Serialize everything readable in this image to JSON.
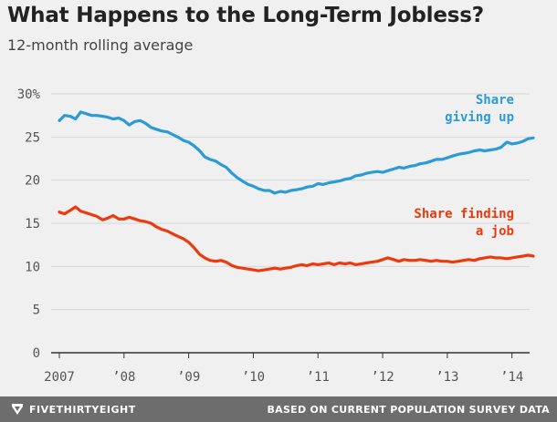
{
  "chart_data": {
    "type": "line",
    "title": "What Happens to the Long-Term Jobless?",
    "subtitle": "12-month rolling average",
    "xlabel": "",
    "ylabel": "",
    "xlim": [
      2007.0,
      2014.4
    ],
    "ylim": [
      0,
      30
    ],
    "y_ticks": [
      {
        "value": 0,
        "label": "0"
      },
      {
        "value": 5,
        "label": "5"
      },
      {
        "value": 10,
        "label": "10"
      },
      {
        "value": 15,
        "label": "15"
      },
      {
        "value": 20,
        "label": "20"
      },
      {
        "value": 25,
        "label": "25"
      },
      {
        "value": 30,
        "label": "30%"
      }
    ],
    "x_ticks": [
      {
        "value": 2007,
        "label": "2007"
      },
      {
        "value": 2008,
        "label": "’08"
      },
      {
        "value": 2009,
        "label": "’09"
      },
      {
        "value": 2010,
        "label": "’10"
      },
      {
        "value": 2011,
        "label": "’11"
      },
      {
        "value": 2012,
        "label": "’12"
      },
      {
        "value": 2013,
        "label": "’13"
      },
      {
        "value": 2014,
        "label": "’14"
      }
    ],
    "grid": "horizontal",
    "series": [
      {
        "name": "Share giving up",
        "label_lines": [
          "Share",
          "giving up"
        ],
        "color": "#2b9bd8",
        "x": [
          2007.0,
          2007.08,
          2007.17,
          2007.25,
          2007.33,
          2007.42,
          2007.5,
          2007.58,
          2007.67,
          2007.75,
          2007.83,
          2007.92,
          2008.0,
          2008.08,
          2008.17,
          2008.25,
          2008.33,
          2008.42,
          2008.5,
          2008.58,
          2008.67,
          2008.75,
          2008.83,
          2008.92,
          2009.0,
          2009.08,
          2009.17,
          2009.25,
          2009.33,
          2009.42,
          2009.5,
          2009.58,
          2009.67,
          2009.75,
          2009.83,
          2009.92,
          2010.0,
          2010.08,
          2010.17,
          2010.25,
          2010.33,
          2010.42,
          2010.5,
          2010.58,
          2010.67,
          2010.75,
          2010.83,
          2010.92,
          2011.0,
          2011.08,
          2011.17,
          2011.25,
          2011.33,
          2011.42,
          2011.5,
          2011.58,
          2011.67,
          2011.75,
          2011.83,
          2011.92,
          2012.0,
          2012.08,
          2012.17,
          2012.25,
          2012.33,
          2012.42,
          2012.5,
          2012.58,
          2012.67,
          2012.75,
          2012.83,
          2012.92,
          2013.0,
          2013.08,
          2013.17,
          2013.25,
          2013.33,
          2013.42,
          2013.5,
          2013.58,
          2013.67,
          2013.75,
          2013.83,
          2013.92,
          2014.0,
          2014.08,
          2014.17,
          2014.25,
          2014.33
        ],
        "values": [
          26.9,
          27.5,
          27.4,
          27.1,
          27.9,
          27.7,
          27.5,
          27.5,
          27.4,
          27.3,
          27.1,
          27.2,
          26.9,
          26.4,
          26.8,
          26.9,
          26.6,
          26.1,
          25.9,
          25.7,
          25.6,
          25.3,
          25.0,
          24.6,
          24.4,
          24.0,
          23.4,
          22.7,
          22.4,
          22.2,
          21.8,
          21.5,
          20.8,
          20.3,
          19.9,
          19.5,
          19.3,
          19.0,
          18.8,
          18.8,
          18.5,
          18.7,
          18.6,
          18.8,
          18.9,
          19.0,
          19.2,
          19.3,
          19.6,
          19.5,
          19.7,
          19.8,
          19.9,
          20.1,
          20.2,
          20.5,
          20.6,
          20.8,
          20.9,
          21.0,
          20.9,
          21.1,
          21.3,
          21.5,
          21.4,
          21.6,
          21.7,
          21.9,
          22.0,
          22.2,
          22.4,
          22.4,
          22.6,
          22.8,
          23.0,
          23.1,
          23.2,
          23.4,
          23.5,
          23.4,
          23.5,
          23.6,
          23.8,
          24.4,
          24.2,
          24.3,
          24.5,
          24.8,
          24.9
        ]
      },
      {
        "name": "Share finding a job",
        "label_lines": [
          "Share finding",
          "a job"
        ],
        "color": "#ec3a0d",
        "x": [
          2007.0,
          2007.08,
          2007.17,
          2007.25,
          2007.33,
          2007.42,
          2007.5,
          2007.58,
          2007.67,
          2007.75,
          2007.83,
          2007.92,
          2008.0,
          2008.08,
          2008.17,
          2008.25,
          2008.33,
          2008.42,
          2008.5,
          2008.58,
          2008.67,
          2008.75,
          2008.83,
          2008.92,
          2009.0,
          2009.08,
          2009.17,
          2009.25,
          2009.33,
          2009.42,
          2009.5,
          2009.58,
          2009.67,
          2009.75,
          2009.83,
          2009.92,
          2010.0,
          2010.08,
          2010.17,
          2010.25,
          2010.33,
          2010.42,
          2010.5,
          2010.58,
          2010.67,
          2010.75,
          2010.83,
          2010.92,
          2011.0,
          2011.08,
          2011.17,
          2011.25,
          2011.33,
          2011.42,
          2011.5,
          2011.58,
          2011.67,
          2011.75,
          2011.83,
          2011.92,
          2012.0,
          2012.08,
          2012.17,
          2012.25,
          2012.33,
          2012.42,
          2012.5,
          2012.58,
          2012.67,
          2012.75,
          2012.83,
          2012.92,
          2013.0,
          2013.08,
          2013.17,
          2013.25,
          2013.33,
          2013.42,
          2013.5,
          2013.58,
          2013.67,
          2013.75,
          2013.83,
          2013.92,
          2014.0,
          2014.08,
          2014.17,
          2014.25,
          2014.33
        ],
        "values": [
          16.3,
          16.1,
          16.5,
          16.9,
          16.4,
          16.2,
          16.0,
          15.8,
          15.4,
          15.6,
          15.9,
          15.5,
          15.5,
          15.7,
          15.5,
          15.3,
          15.2,
          15.0,
          14.6,
          14.3,
          14.1,
          13.8,
          13.5,
          13.2,
          12.8,
          12.2,
          11.4,
          11.0,
          10.7,
          10.6,
          10.7,
          10.5,
          10.1,
          9.9,
          9.8,
          9.7,
          9.6,
          9.5,
          9.6,
          9.7,
          9.8,
          9.7,
          9.8,
          9.9,
          10.1,
          10.2,
          10.1,
          10.3,
          10.2,
          10.3,
          10.4,
          10.2,
          10.4,
          10.3,
          10.4,
          10.2,
          10.3,
          10.4,
          10.5,
          10.6,
          10.8,
          11.0,
          10.8,
          10.6,
          10.8,
          10.7,
          10.7,
          10.8,
          10.7,
          10.6,
          10.7,
          10.6,
          10.6,
          10.5,
          10.6,
          10.7,
          10.8,
          10.7,
          10.9,
          11.0,
          11.1,
          11.0,
          11.0,
          10.9,
          11.0,
          11.1,
          11.2,
          11.3,
          11.2
        ]
      }
    ]
  },
  "footer": {
    "brand": "FIVETHIRTYEIGHT",
    "source": "BASED ON CURRENT POPULATION SURVEY DATA"
  },
  "colors": {
    "background": "#f0f0f0",
    "grid": "#d8d8d8",
    "baseline": "#333333",
    "footer": "#6d6d6d"
  },
  "icons": {
    "logo": "fivethirtyeight-logo-icon"
  }
}
